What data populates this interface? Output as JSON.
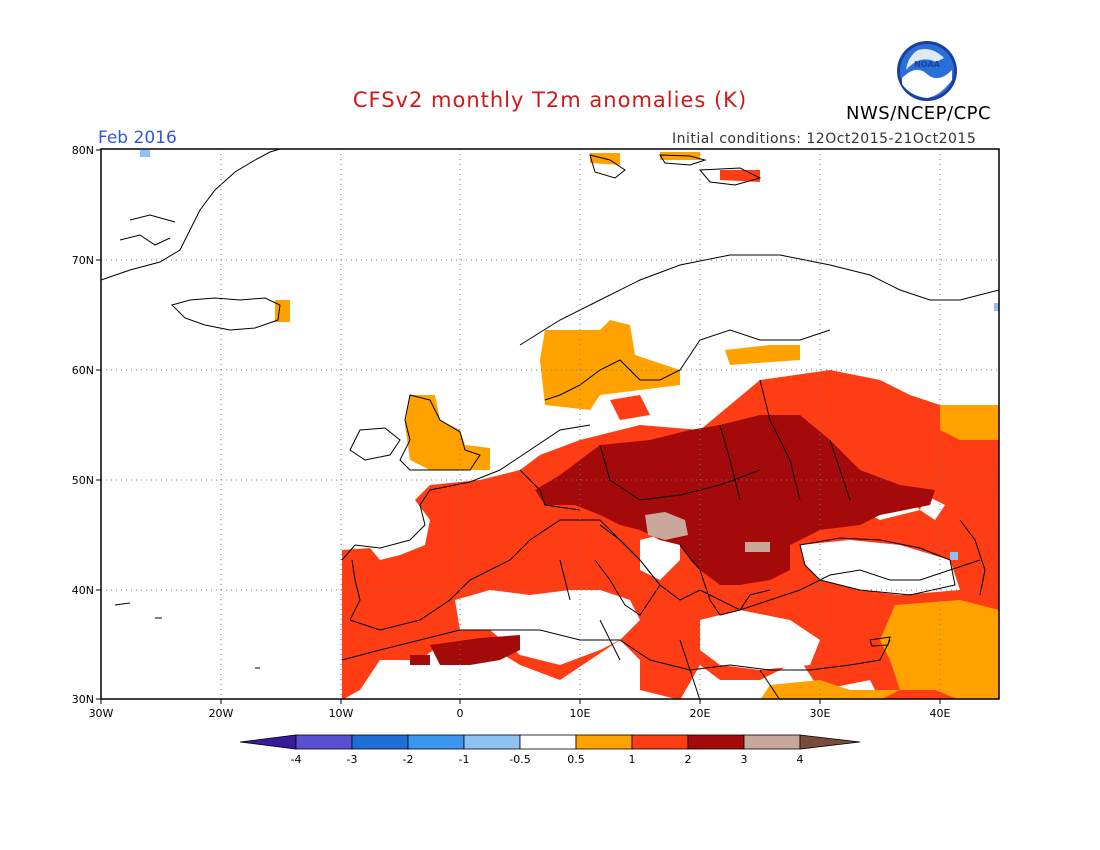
{
  "header": {
    "title": "CFSv2 monthly T2m anomalies (K)",
    "valid_month": "Feb 2016",
    "initial_conditions": "Initial conditions: 12Oct2015-21Oct2015",
    "agency": "NWS/NCEP/CPC",
    "logo_text": "NOAA"
  },
  "map": {
    "lat_labels": [
      "80N",
      "70N",
      "60N",
      "50N",
      "40N",
      "30N"
    ],
    "lon_labels": [
      "30W",
      "20W",
      "10W",
      "0",
      "10E",
      "20E",
      "30E",
      "40E"
    ],
    "lat_range": [
      30,
      80
    ],
    "lon_range": [
      -30,
      45
    ],
    "grid": "dotted",
    "colors": {
      "land_outline": "#000000",
      "frame": "#000000"
    }
  },
  "colorbar": {
    "labels": [
      "-4",
      "-3",
      "-2",
      "-1",
      "-0.5",
      "0.5",
      "1",
      "2",
      "3",
      "4"
    ],
    "bins": [
      {
        "range": "<-4",
        "color": "#3a1a9a"
      },
      {
        "range": "-4 to -3",
        "color": "#5a4fcf"
      },
      {
        "range": "-3 to -2",
        "color": "#1f6fd6"
      },
      {
        "range": "-2 to -1",
        "color": "#3e96ee"
      },
      {
        "range": "-1 to -0.5",
        "color": "#8ec2f2"
      },
      {
        "range": "-0.5 to 0.5",
        "color": "#ffffff"
      },
      {
        "range": "0.5 to 1",
        "color": "#ffa200"
      },
      {
        "range": "1 to 2",
        "color": "#ff3d14"
      },
      {
        "range": "2 to 3",
        "color": "#a50a0a"
      },
      {
        "range": "3 to 4",
        "color": "#c8a89a"
      },
      {
        "range": ">4",
        "color": "#7a4a3a"
      }
    ]
  }
}
